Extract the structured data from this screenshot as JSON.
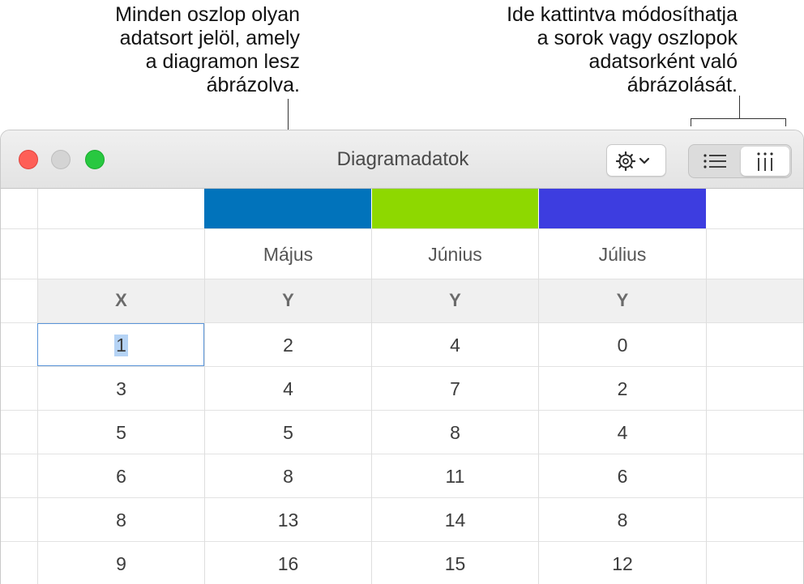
{
  "callouts": {
    "left_lines": [
      "Minden oszlop olyan",
      "adatsort jelöl, amely",
      "a diagramon lesz",
      "ábrázolva."
    ],
    "right_lines": [
      "Ide kattintva módosíthatja",
      "a sorok vagy oszlopok",
      "adatsorként való",
      "ábrázolását."
    ]
  },
  "window": {
    "title": "Diagramadatok"
  },
  "toolbar": {
    "gear_menu_icon": "gear-with-chevron",
    "plot_rows_icon": "list-rows",
    "plot_columns_icon": "list-columns",
    "plot_mode_selected": "columns"
  },
  "colors": {
    "series_majus": "#0173bb",
    "series_junius": "#8ed800",
    "series_julius": "#3d3de0",
    "selection_border": "#5a95d9"
  },
  "table": {
    "series": [
      {
        "name": "Május",
        "axis": "Y",
        "values": [
          "2",
          "4",
          "5",
          "8",
          "13",
          "16"
        ]
      },
      {
        "name": "Június",
        "axis": "Y",
        "values": [
          "4",
          "7",
          "8",
          "11",
          "14",
          "15"
        ]
      },
      {
        "name": "Július",
        "axis": "Y",
        "values": [
          "0",
          "2",
          "4",
          "6",
          "8",
          "12"
        ]
      }
    ],
    "x_header": "X",
    "x_values": [
      "1",
      "3",
      "5",
      "6",
      "8",
      "9"
    ],
    "selected_cell": "1"
  }
}
